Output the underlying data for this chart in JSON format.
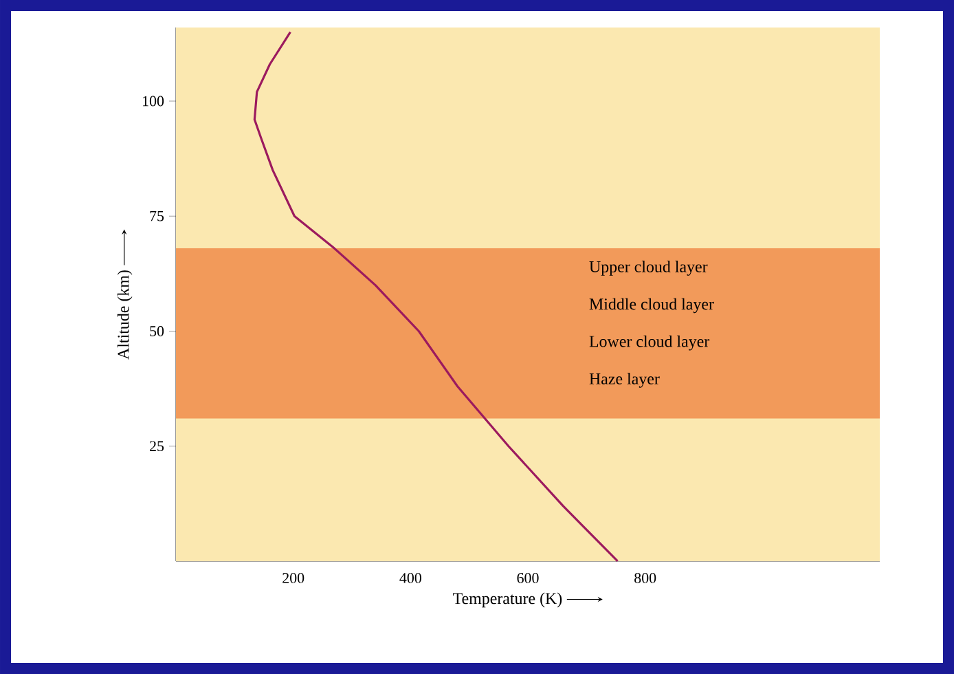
{
  "chart_data": {
    "type": "line",
    "xlabel": "Temperature (K)",
    "ylabel": "Altitude (km)",
    "x": [
      753,
      660,
      567,
      480,
      414,
      340,
      270,
      202,
      165,
      145,
      134,
      138,
      160,
      195
    ],
    "series": [
      {
        "color": "#9c1a5e",
        "values": [
          0,
          12,
          25,
          38,
          50,
          60,
          68,
          75,
          85,
          92,
          96,
          102,
          108,
          115
        ]
      }
    ],
    "xlim": [
      0,
      1200
    ],
    "ylim": [
      0,
      116
    ],
    "xticks": [
      200,
      400,
      600,
      800
    ],
    "yticks": [
      25,
      50,
      75,
      100
    ],
    "marker": "none",
    "line_style": "solid",
    "bands": [
      {
        "axis": "y",
        "from": 31,
        "to": 68,
        "color": "#f29a5a"
      }
    ],
    "annotations": [
      "Upper cloud layer",
      "Middle cloud layer",
      "Lower cloud layer",
      "Haze layer"
    ]
  }
}
